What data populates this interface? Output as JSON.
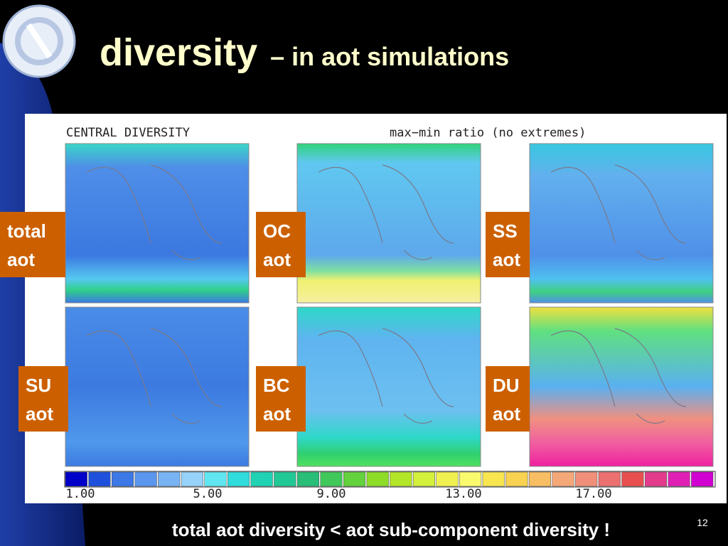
{
  "header": {
    "title": "diversity",
    "subtitle": "– in aot simulations"
  },
  "figure": {
    "heading": "CENTRAL DIVERSITY",
    "caption": "max−min ratio (no extremes)",
    "panels": [
      {
        "label": [
          "total",
          "aot"
        ]
      },
      {
        "label": [
          "OC",
          "aot"
        ]
      },
      {
        "label": [
          "SS",
          "aot"
        ]
      },
      {
        "label": [
          "SU",
          "aot"
        ]
      },
      {
        "label": [
          "BC",
          "aot"
        ]
      },
      {
        "label": [
          "DU",
          "aot"
        ]
      }
    ],
    "colorbar": {
      "labels": [
        "1.00",
        "5.00",
        "9.00",
        "13.00",
        "17.00"
      ]
    }
  },
  "footer": {
    "text": "total aot diversity < aot sub-component diversity !",
    "page": "12"
  }
}
